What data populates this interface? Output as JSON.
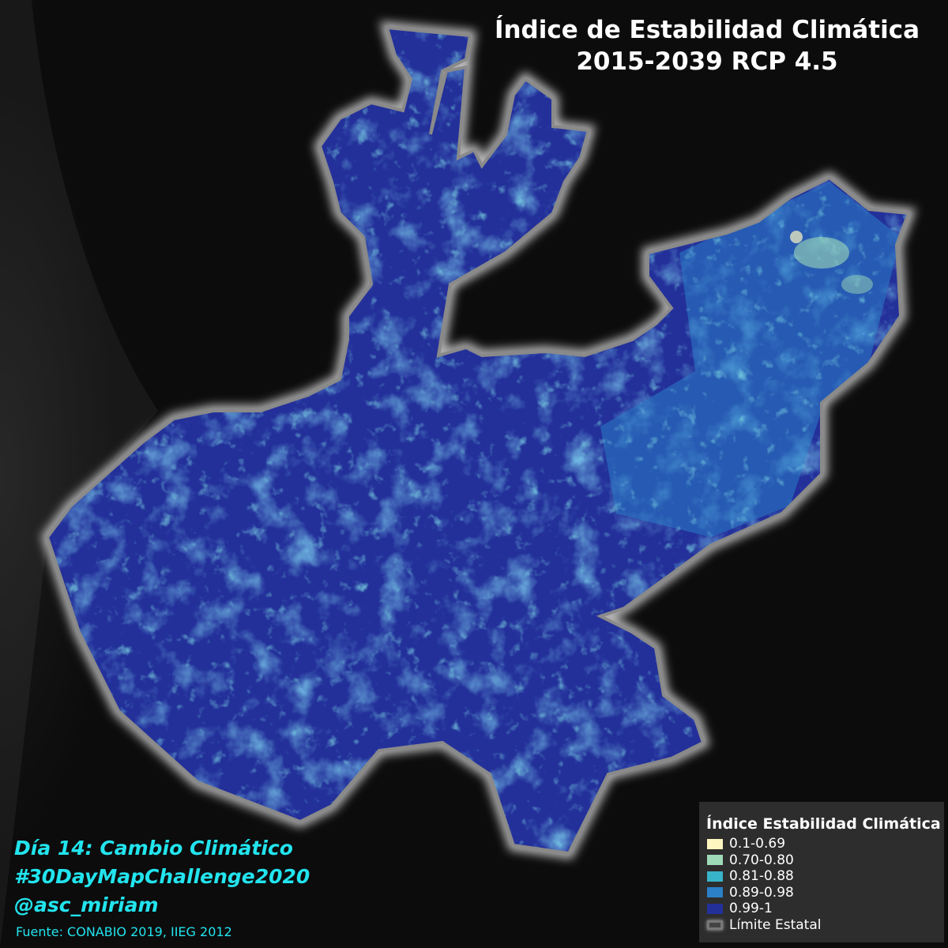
{
  "title": {
    "line1": "Índice de Estabilidad Climática",
    "line2": "2015-2039 RCP 4.5"
  },
  "credits": {
    "day": "Día 14: Cambio Climático",
    "hashtag": "#30DayMapChallenge2020",
    "author": "@asc_miriam",
    "source": "Fuente: CONABIO 2019, IIEG 2012"
  },
  "legend": {
    "title": "Índice Estabilidad Climática",
    "classes": [
      {
        "label": "0.1-0.69",
        "color": "#fdf6c0"
      },
      {
        "label": "0.70-0.80",
        "color": "#9ed9b8"
      },
      {
        "label": "0.81-0.88",
        "color": "#38b4c8"
      },
      {
        "label": "0.89-0.98",
        "color": "#2b80c8"
      },
      {
        "label": "0.99-1",
        "color": "#23309a"
      }
    ],
    "boundary_label": "Límite Estatal"
  }
}
